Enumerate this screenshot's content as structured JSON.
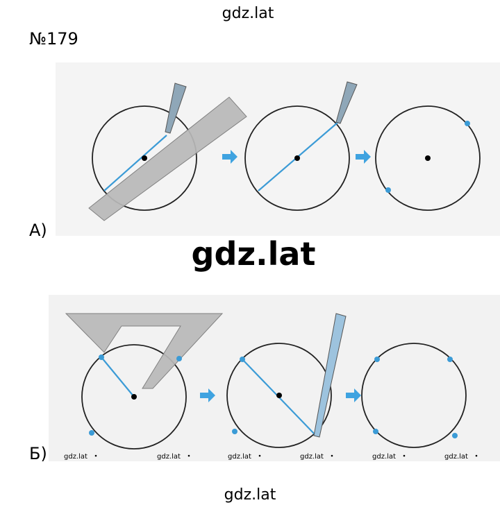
{
  "header": {
    "site": "gdz.lat"
  },
  "task": {
    "number": "№179"
  },
  "parts": [
    {
      "label": "А)"
    },
    {
      "label": "Б)"
    }
  ],
  "watermark": "gdz.lat",
  "small_watermarks": [
    "gdz.lat",
    "gdz.lat",
    "gdz.lat",
    "gdz.lat",
    "gdz.lat",
    "gdz.lat"
  ],
  "footer": {
    "site": "gdz.lat"
  }
}
